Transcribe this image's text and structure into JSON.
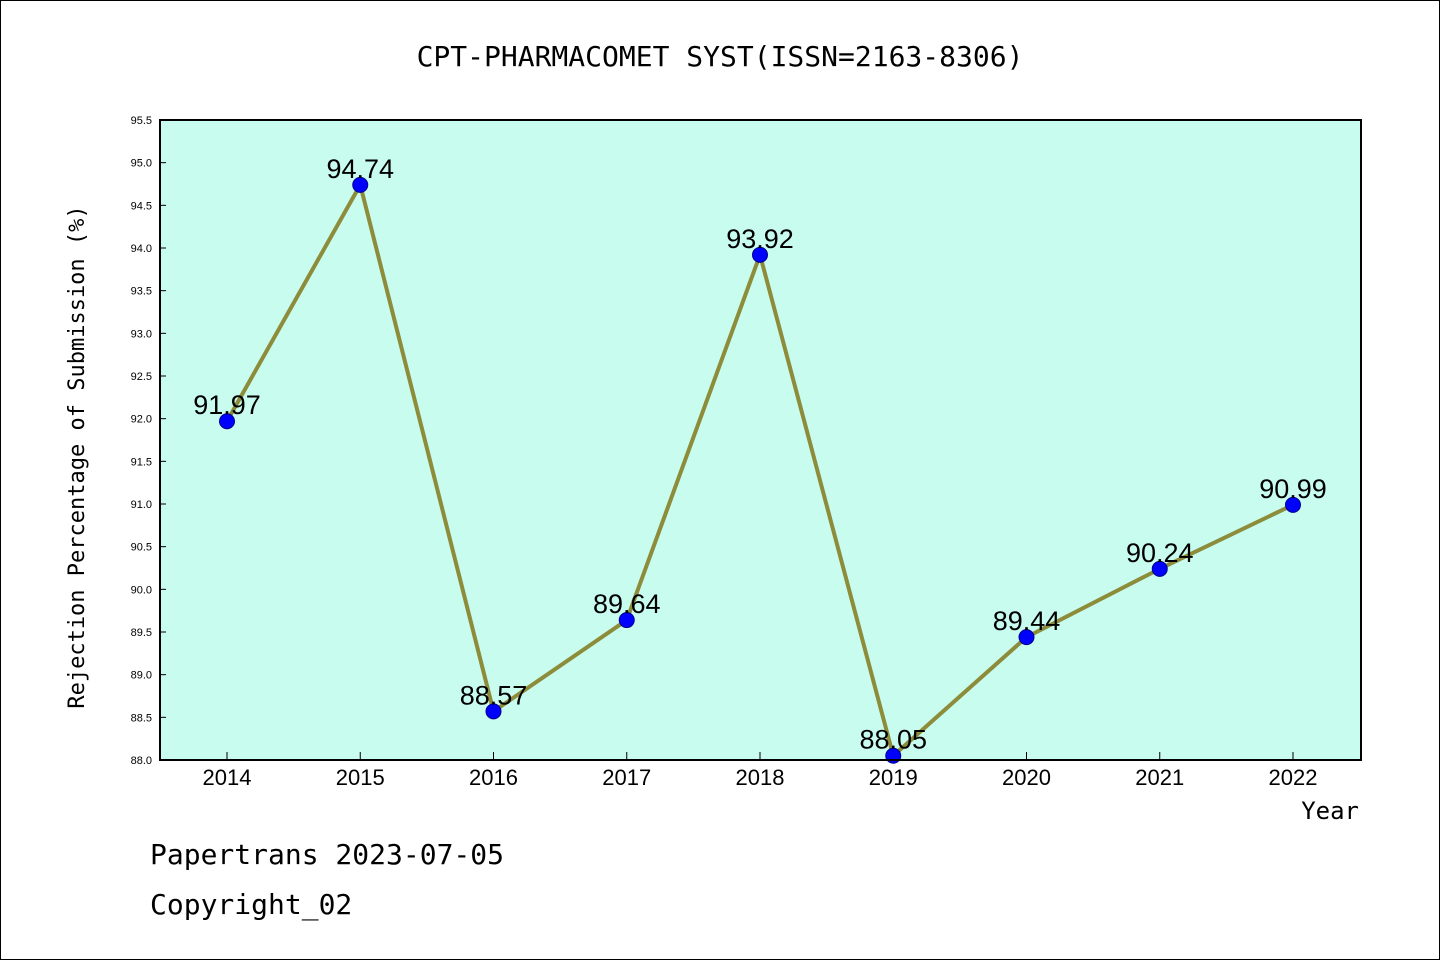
{
  "colors": {
    "plot_background": "#c8fcee",
    "line": "#8c8c3a",
    "marker": "#0000ff",
    "marker_edge": "#00008b",
    "axis": "#000000"
  },
  "chart_data": {
    "type": "line",
    "title": "CPT-PHARMACOMET SYST(ISSN=2163-8306)",
    "xlabel": "Year",
    "ylabel": "Rejection Percentage of Submission (%)",
    "categories": [
      "2014",
      "2015",
      "2016",
      "2017",
      "2018",
      "2019",
      "2020",
      "2021",
      "2022"
    ],
    "values": [
      91.97,
      94.74,
      88.57,
      89.64,
      93.92,
      88.05,
      89.44,
      90.24,
      90.99
    ],
    "data_labels": [
      "91.97",
      "94.74",
      "88.57",
      "89.64",
      "93.92",
      "88.05",
      "89.44",
      "90.24",
      "90.99"
    ],
    "ylim": [
      88.0,
      95.5
    ],
    "yticks": [
      "88.0",
      "88.5",
      "89.0",
      "89.5",
      "90.0",
      "90.5",
      "91.0",
      "91.5",
      "92.0",
      "92.5",
      "93.0",
      "93.5",
      "94.0",
      "94.5",
      "95.0",
      "95.5"
    ],
    "grid": false,
    "legend": "none"
  },
  "footer": {
    "line1": "Papertrans 2023-07-05",
    "line2": "Copyright_02"
  }
}
